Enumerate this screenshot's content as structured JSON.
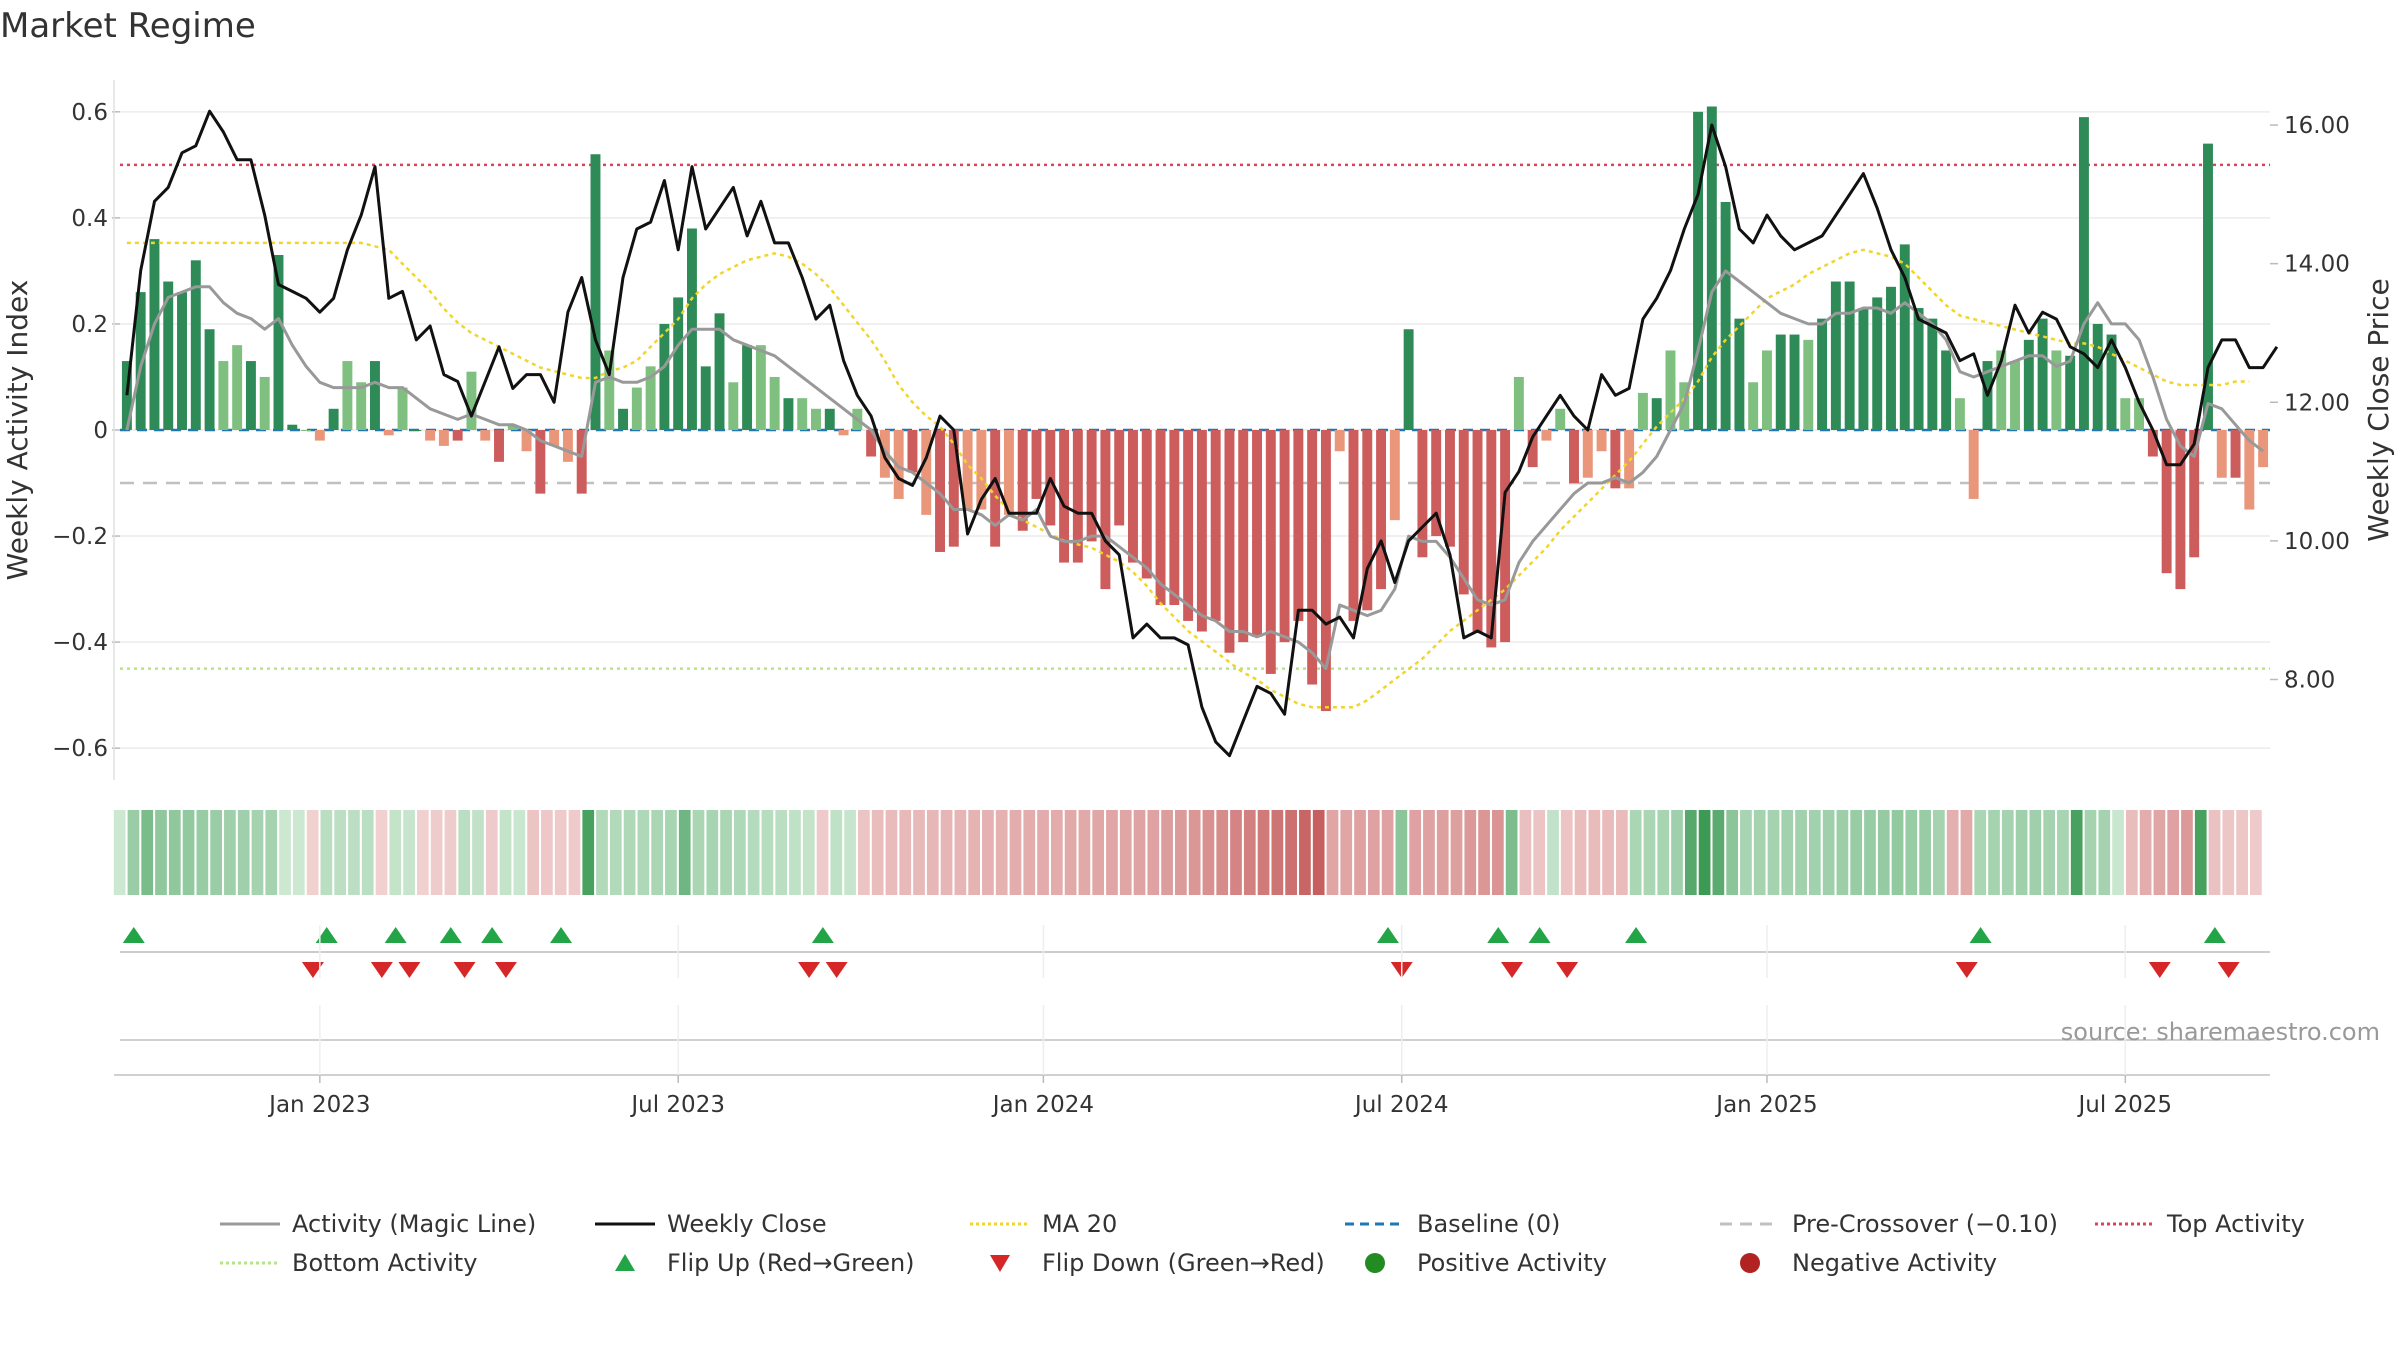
{
  "chart_data": {
    "type": "bar",
    "title": "Market Regime",
    "source": "source: sharemaestro.com",
    "left_axis": {
      "label": "Weekly Activity Index",
      "ylim": [
        -0.66,
        0.66
      ],
      "ticks": [
        -0.6,
        -0.4,
        -0.2,
        0,
        0.2,
        0.4,
        0.6
      ],
      "tick_labels": [
        "−0.6",
        "−0.4",
        "−0.2",
        "0",
        "0.2",
        "0.4",
        "0.6"
      ]
    },
    "right_axis": {
      "label": "Weekly Close Price",
      "ylim": [
        6.55,
        16.65
      ],
      "ticks": [
        8,
        10,
        12,
        14,
        16
      ],
      "tick_labels": [
        "8.00",
        "10.00",
        "12.00",
        "14.00",
        "16.00"
      ]
    },
    "x_axis": {
      "ticks": [
        "Jan 2023",
        "Jul 2023",
        "Jan 2024",
        "Jul 2024",
        "Jan 2025",
        "Jul 2025"
      ],
      "tick_weeks": [
        14,
        40,
        66.5,
        92.5,
        119,
        145
      ]
    },
    "levels": {
      "top_activity": 0.5,
      "bottom_activity": -0.45,
      "pre_crossover": -0.1,
      "baseline": 0
    },
    "colors": {
      "strong_pos": "#2e8b57",
      "weak_pos": "#7fbf7f",
      "strong_neg": "#cd5c5c",
      "weak_neg": "#e9967a",
      "close": "#111111",
      "magic": "#999999",
      "ma20": "#f1d52b",
      "baseline": "#1f77b4",
      "pre": "#c0c0c0",
      "top": "#d9435e",
      "bottom": "#b7e38a",
      "flip_up": "#22a447",
      "flip_down": "#d62728"
    },
    "series": [
      {
        "name": "Weekly Activity Index",
        "x_start": 0,
        "values": [
          0.13,
          0.26,
          0.36,
          0.28,
          0.26,
          0.32,
          0.19,
          0.13,
          0.16,
          0.13,
          0.1,
          0.33,
          0.01,
          0.0,
          -0.02,
          0.04,
          0.13,
          0.09,
          0.13,
          -0.01,
          0.08,
          0.0,
          -0.02,
          -0.03,
          -0.02,
          0.11,
          -0.02,
          -0.06,
          0.01,
          -0.04,
          -0.12,
          -0.03,
          -0.06,
          -0.12,
          0.52,
          0.15,
          0.04,
          0.08,
          0.12,
          0.2,
          0.25,
          0.38,
          0.12,
          0.22,
          0.09,
          0.16,
          0.16,
          0.1,
          0.06,
          0.06,
          0.04,
          0.04,
          -0.01,
          0.04,
          -0.05,
          -0.09,
          -0.13,
          -0.08,
          -0.16,
          -0.23,
          -0.22,
          -0.15,
          -0.15,
          -0.22,
          -0.16,
          -0.19,
          -0.13,
          -0.18,
          -0.25,
          -0.25,
          -0.21,
          -0.3,
          -0.18,
          -0.25,
          -0.28,
          -0.33,
          -0.33,
          -0.36,
          -0.38,
          -0.36,
          -0.42,
          -0.4,
          -0.39,
          -0.46,
          -0.4,
          -0.36,
          -0.48,
          -0.53,
          -0.04,
          -0.36,
          -0.34,
          -0.3,
          -0.17,
          0.19,
          -0.24,
          -0.2,
          -0.22,
          -0.31,
          -0.38,
          -0.41,
          -0.4,
          0.1,
          -0.07,
          -0.02,
          0.04,
          -0.1,
          -0.09,
          -0.04,
          -0.11,
          -0.11,
          0.07,
          0.06,
          0.15,
          0.09,
          0.6,
          0.61,
          0.43,
          0.21,
          0.09,
          0.15,
          0.18,
          0.18,
          0.17,
          0.21,
          0.28,
          0.28,
          0.23,
          0.25,
          0.27,
          0.35,
          0.23,
          0.21,
          0.15,
          0.06,
          -0.13,
          0.13,
          0.15,
          0.13,
          0.17,
          0.21,
          0.15,
          0.14,
          0.59,
          0.2,
          0.18,
          0.06,
          0.06,
          -0.05,
          -0.27,
          -0.3,
          -0.24,
          0.54,
          -0.09,
          -0.09,
          -0.15,
          -0.07
        ]
      },
      {
        "name": "Weekly Close",
        "x_start": 0,
        "values": [
          12.1,
          13.9,
          14.9,
          15.1,
          15.6,
          15.7,
          16.2,
          15.9,
          15.5,
          15.5,
          14.7,
          13.7,
          13.6,
          13.5,
          13.3,
          13.5,
          14.2,
          14.7,
          15.4,
          13.5,
          13.6,
          12.9,
          13.1,
          12.4,
          12.3,
          11.8,
          12.3,
          12.8,
          12.2,
          12.4,
          12.4,
          12.0,
          13.3,
          13.8,
          12.9,
          12.4,
          13.8,
          14.5,
          14.6,
          15.2,
          14.2,
          15.4,
          14.5,
          14.8,
          15.1,
          14.4,
          14.9,
          14.3,
          14.3,
          13.8,
          13.2,
          13.4,
          12.6,
          12.1,
          11.8,
          11.2,
          10.9,
          10.8,
          11.2,
          11.8,
          11.6,
          10.1,
          10.6,
          10.9,
          10.4,
          10.4,
          10.4,
          10.9,
          10.5,
          10.4,
          10.4,
          10.0,
          9.8,
          8.6,
          8.8,
          8.6,
          8.6,
          8.5,
          7.6,
          7.1,
          6.9,
          7.4,
          7.9,
          7.8,
          7.5,
          9.0,
          9.0,
          8.8,
          8.9,
          8.6,
          9.6,
          10.0,
          9.4,
          10.0,
          10.2,
          10.4,
          9.8,
          8.6,
          8.7,
          8.6,
          10.7,
          11.0,
          11.5,
          11.8,
          12.1,
          11.8,
          11.6,
          12.4,
          12.1,
          12.2,
          13.2,
          13.5,
          13.9,
          14.5,
          15.0,
          16.0,
          15.4,
          14.5,
          14.3,
          14.7,
          14.4,
          14.2,
          14.3,
          14.4,
          14.7,
          15.0,
          15.3,
          14.8,
          14.2,
          13.8,
          13.2,
          13.1,
          13.0,
          12.6,
          12.7,
          12.1,
          12.6,
          13.4,
          13.0,
          13.3,
          13.2,
          12.8,
          12.7,
          12.5,
          12.9,
          12.5,
          12.0,
          11.6,
          11.1,
          11.1,
          11.4,
          12.5,
          12.9,
          12.9,
          12.5,
          12.5,
          12.8
        ]
      },
      {
        "name": "Activity (Magic Line)",
        "x_start": 0,
        "values": [
          0.0,
          0.12,
          0.2,
          0.25,
          0.26,
          0.27,
          0.27,
          0.24,
          0.22,
          0.21,
          0.19,
          0.21,
          0.16,
          0.12,
          0.09,
          0.08,
          0.08,
          0.08,
          0.09,
          0.08,
          0.08,
          0.06,
          0.04,
          0.03,
          0.02,
          0.03,
          0.02,
          0.01,
          0.01,
          0.0,
          -0.02,
          -0.03,
          -0.04,
          -0.05,
          0.09,
          0.1,
          0.09,
          0.09,
          0.1,
          0.12,
          0.16,
          0.19,
          0.19,
          0.19,
          0.17,
          0.16,
          0.15,
          0.14,
          0.12,
          0.1,
          0.08,
          0.06,
          0.04,
          0.02,
          0.0,
          -0.04,
          -0.07,
          -0.08,
          -0.1,
          -0.12,
          -0.15,
          -0.15,
          -0.16,
          -0.18,
          -0.16,
          -0.17,
          -0.15,
          -0.2,
          -0.21,
          -0.21,
          -0.2,
          -0.2,
          -0.22,
          -0.24,
          -0.26,
          -0.29,
          -0.31,
          -0.33,
          -0.35,
          -0.36,
          -0.38,
          -0.38,
          -0.39,
          -0.38,
          -0.39,
          -0.4,
          -0.42,
          -0.45,
          -0.33,
          -0.34,
          -0.35,
          -0.34,
          -0.3,
          -0.2,
          -0.21,
          -0.21,
          -0.24,
          -0.28,
          -0.32,
          -0.33,
          -0.32,
          -0.25,
          -0.21,
          -0.18,
          -0.15,
          -0.12,
          -0.1,
          -0.1,
          -0.09,
          -0.1,
          -0.08,
          -0.05,
          0.0,
          0.05,
          0.15,
          0.26,
          0.3,
          0.28,
          0.26,
          0.24,
          0.22,
          0.21,
          0.2,
          0.2,
          0.22,
          0.22,
          0.23,
          0.23,
          0.22,
          0.24,
          0.22,
          0.2,
          0.17,
          0.11,
          0.1,
          0.11,
          0.12,
          0.13,
          0.14,
          0.14,
          0.12,
          0.13,
          0.2,
          0.24,
          0.2,
          0.2,
          0.17,
          0.1,
          0.02,
          -0.03,
          -0.05,
          0.05,
          0.04,
          0.01,
          -0.02,
          -0.04
        ]
      },
      {
        "name": "MA 20",
        "x_start": 0,
        "values": [
          14.3,
          14.3,
          14.3,
          14.3,
          14.3,
          14.3,
          14.3,
          14.3,
          14.3,
          14.3,
          14.3,
          14.3,
          14.3,
          14.3,
          14.3,
          14.3,
          14.3,
          14.3,
          14.25,
          14.2,
          14.0,
          13.8,
          13.6,
          13.35,
          13.15,
          13.0,
          12.9,
          12.8,
          12.7,
          12.6,
          12.5,
          12.45,
          12.4,
          12.35,
          12.35,
          12.45,
          12.5,
          12.6,
          12.8,
          13.0,
          13.2,
          13.5,
          13.7,
          13.85,
          13.95,
          14.05,
          14.1,
          14.15,
          14.1,
          14.0,
          13.85,
          13.65,
          13.4,
          13.15,
          12.9,
          12.6,
          12.25,
          12.0,
          11.8,
          11.65,
          11.4,
          11.1,
          10.9,
          10.65,
          10.45,
          10.3,
          10.2,
          10.1,
          10.0,
          9.95,
          9.9,
          9.8,
          9.7,
          9.55,
          9.35,
          9.1,
          8.9,
          8.7,
          8.55,
          8.4,
          8.25,
          8.1,
          8.0,
          7.85,
          7.75,
          7.65,
          7.6,
          7.6,
          7.6,
          7.6,
          7.7,
          7.85,
          8.0,
          8.15,
          8.3,
          8.5,
          8.7,
          8.85,
          9.0,
          9.15,
          9.3,
          9.5,
          9.7,
          9.9,
          10.15,
          10.35,
          10.55,
          10.75,
          10.95,
          11.15,
          11.4,
          11.65,
          11.85,
          12.05,
          12.3,
          12.65,
          12.9,
          13.1,
          13.3,
          13.5,
          13.6,
          13.7,
          13.85,
          13.95,
          14.05,
          14.15,
          14.2,
          14.15,
          14.1,
          14.0,
          13.8,
          13.6,
          13.4,
          13.25,
          13.2,
          13.15,
          13.1,
          13.05,
          13.0,
          12.95,
          12.9,
          12.85,
          12.85,
          12.8,
          12.7,
          12.6,
          12.5,
          12.4,
          12.3,
          12.25,
          12.25,
          12.25,
          12.25,
          12.3,
          12.3
        ]
      }
    ],
    "regime_strip": [
      0.05,
      0.24,
      0.36,
      0.28,
      0.28,
      0.27,
      0.25,
      0.24,
      0.22,
      0.22,
      0.2,
      0.2,
      0.05,
      0.05,
      -0.03,
      0.12,
      0.11,
      0.11,
      0.12,
      -0.03,
      0.08,
      0.07,
      -0.03,
      -0.05,
      -0.05,
      0.12,
      0.09,
      -0.06,
      0.08,
      0.06,
      -0.09,
      -0.07,
      -0.06,
      -0.06,
      0.55,
      0.15,
      0.15,
      0.16,
      0.16,
      0.18,
      0.19,
      0.4,
      0.18,
      0.19,
      0.18,
      0.16,
      0.14,
      0.13,
      0.12,
      0.1,
      0.08,
      -0.06,
      0.1,
      0.07,
      -0.09,
      -0.12,
      -0.13,
      -0.14,
      -0.14,
      -0.15,
      -0.16,
      -0.16,
      -0.17,
      -0.18,
      -0.18,
      -0.2,
      -0.2,
      -0.21,
      -0.21,
      -0.22,
      -0.22,
      -0.23,
      -0.24,
      -0.24,
      -0.25,
      -0.26,
      -0.28,
      -0.29,
      -0.31,
      -0.34,
      -0.36,
      -0.4,
      -0.42,
      -0.45,
      -0.48,
      -0.5,
      -0.55,
      -0.58,
      -0.24,
      -0.24,
      -0.26,
      -0.26,
      -0.26,
      0.3,
      -0.26,
      -0.26,
      -0.27,
      -0.27,
      -0.3,
      -0.31,
      -0.32,
      0.35,
      -0.11,
      -0.09,
      0.09,
      -0.09,
      -0.12,
      -0.13,
      -0.13,
      -0.13,
      0.18,
      0.18,
      0.19,
      0.22,
      0.5,
      0.6,
      0.48,
      0.3,
      0.19,
      0.2,
      0.2,
      0.21,
      0.21,
      0.21,
      0.22,
      0.23,
      0.25,
      0.25,
      0.26,
      0.27,
      0.25,
      0.25,
      0.2,
      -0.19,
      -0.22,
      0.18,
      0.2,
      0.2,
      0.22,
      0.22,
      0.2,
      0.19,
      0.55,
      0.2,
      0.2,
      0.06,
      -0.12,
      -0.2,
      -0.24,
      -0.26,
      -0.3,
      0.55,
      -0.1,
      -0.08,
      -0.08,
      -0.06
    ],
    "flips": {
      "up_weeks": [
        1,
        15,
        20,
        24,
        27,
        32,
        51,
        92,
        100,
        103,
        110,
        135,
        152
      ],
      "down_weeks": [
        14,
        19,
        21,
        25,
        28,
        50,
        52,
        93,
        101,
        105,
        134,
        148,
        153
      ]
    },
    "legend": [
      {
        "label": "Activity (Magic Line)",
        "kind": "line",
        "color": "#999999",
        "dash": ""
      },
      {
        "label": "Weekly Close",
        "kind": "line",
        "color": "#111111",
        "dash": ""
      },
      {
        "label": "MA 20",
        "kind": "line",
        "color": "#f1d52b",
        "dash": "3,3"
      },
      {
        "label": "Baseline (0)",
        "kind": "line",
        "color": "#1f77b4",
        "dash": "9,6"
      },
      {
        "label": "Pre-Crossover (−0.10)",
        "kind": "line",
        "color": "#c0c0c0",
        "dash": "12,8"
      },
      {
        "label": "Top Activity",
        "kind": "line",
        "color": "#d9435e",
        "dash": "3,3"
      },
      {
        "label": "Bottom Activity",
        "kind": "line",
        "color": "#b7e38a",
        "dash": "3,3"
      },
      {
        "label": "Flip Up (Red→Green)",
        "kind": "tri-up",
        "color": "#22a447",
        "dash": ""
      },
      {
        "label": "Flip Down (Green→Red)",
        "kind": "tri-down",
        "color": "#d62728",
        "dash": ""
      },
      {
        "label": "Positive Activity",
        "kind": "dot",
        "color": "#228b22",
        "dash": ""
      },
      {
        "label": "Negative Activity",
        "kind": "dot",
        "color": "#b22222",
        "dash": ""
      }
    ]
  }
}
